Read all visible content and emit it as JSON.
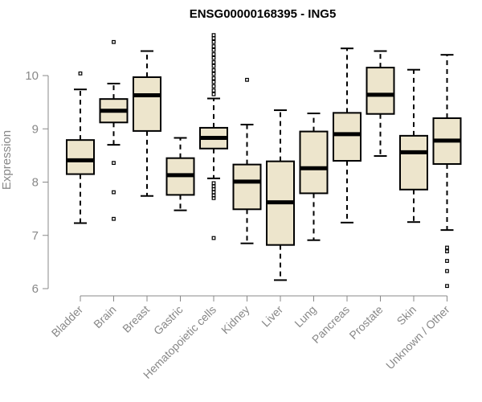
{
  "chart_data": {
    "type": "box",
    "title": "ENSG00000168395 - ING5",
    "ylabel": "Expression",
    "xlabel": "",
    "ylim": [
      6,
      10.8
    ],
    "yticks": [
      6,
      7,
      8,
      9,
      10
    ],
    "box_fill": "#ede5cc",
    "categories": [
      "Bladder",
      "Brain",
      "Breast",
      "Gastric",
      "Hematopoietic cells",
      "Kidney",
      "Liver",
      "Lung",
      "Pancreas",
      "Prostate",
      "Skin",
      "Unknown / Other"
    ],
    "boxes": [
      {
        "category": "Bladder",
        "whisker_low": 7.23,
        "q1": 8.15,
        "median": 8.41,
        "q3": 8.79,
        "whisker_high": 9.74,
        "outliers": [
          10.04
        ]
      },
      {
        "category": "Brain",
        "whisker_low": 8.7,
        "q1": 9.12,
        "median": 9.34,
        "q3": 9.56,
        "whisker_high": 9.85,
        "outliers": [
          10.63,
          8.36,
          7.81,
          7.31
        ]
      },
      {
        "category": "Breast",
        "whisker_low": 7.74,
        "q1": 8.96,
        "median": 9.63,
        "q3": 9.97,
        "whisker_high": 10.46,
        "outliers": []
      },
      {
        "category": "Gastric",
        "whisker_low": 7.47,
        "q1": 7.76,
        "median": 8.13,
        "q3": 8.45,
        "whisker_high": 8.83,
        "outliers": []
      },
      {
        "category": "Hematopoietic cells",
        "whisker_low": 8.07,
        "q1": 8.63,
        "median": 8.83,
        "q3": 9.02,
        "whisker_high": 9.57,
        "outliers": [
          10.76,
          10.7,
          10.63,
          10.55,
          10.48,
          10.4,
          10.33,
          10.25,
          10.18,
          10.1,
          10.03,
          9.95,
          9.88,
          9.8,
          9.72,
          9.65,
          7.98,
          7.92,
          7.87,
          7.81,
          7.75,
          7.7,
          6.95
        ]
      },
      {
        "category": "Kidney",
        "whisker_low": 6.85,
        "q1": 7.49,
        "median": 8.01,
        "q3": 8.33,
        "whisker_high": 9.08,
        "outliers": [
          9.92
        ]
      },
      {
        "category": "Liver",
        "whisker_low": 6.16,
        "q1": 6.82,
        "median": 7.62,
        "q3": 8.39,
        "whisker_high": 9.35,
        "outliers": []
      },
      {
        "category": "Lung",
        "whisker_low": 6.91,
        "q1": 7.79,
        "median": 8.26,
        "q3": 8.95,
        "whisker_high": 9.29,
        "outliers": []
      },
      {
        "category": "Pancreas",
        "whisker_low": 7.24,
        "q1": 8.4,
        "median": 8.9,
        "q3": 9.3,
        "whisker_high": 10.51,
        "outliers": []
      },
      {
        "category": "Prostate",
        "whisker_low": 8.49,
        "q1": 9.28,
        "median": 9.64,
        "q3": 10.15,
        "whisker_high": 10.46,
        "outliers": []
      },
      {
        "category": "Skin",
        "whisker_low": 7.25,
        "q1": 7.86,
        "median": 8.56,
        "q3": 8.87,
        "whisker_high": 10.11,
        "outliers": []
      },
      {
        "category": "Unknown / Other",
        "whisker_low": 7.1,
        "q1": 8.34,
        "median": 8.78,
        "q3": 9.2,
        "whisker_high": 10.39,
        "outliers": [
          6.77,
          6.7,
          6.52,
          6.33,
          6.05
        ]
      }
    ]
  }
}
